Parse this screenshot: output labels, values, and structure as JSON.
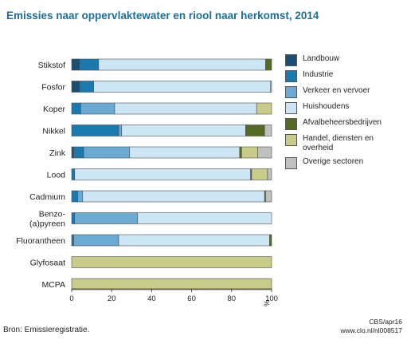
{
  "title": "Emissies naar oppervlaktewater en riool naar herkomst,  2014",
  "source": "Bron: Emissieregistratie.",
  "credit_line1": "CBS/apr16",
  "credit_line2": "www.clo.nl/nl008517",
  "chart_data": {
    "type": "bar",
    "orientation": "horizontal",
    "stacked": true,
    "title": "Emissies naar oppervlaktewater en riool naar herkomst,  2014",
    "xlabel": "",
    "unit": "%",
    "xlim": [
      0,
      100
    ],
    "ticks": [
      "0",
      "20",
      "40",
      "60",
      "80",
      "100"
    ],
    "grid": false,
    "legend_position": "right",
    "categories": [
      "Stikstof",
      "Fosfor",
      "Koper",
      "Nikkel",
      "Zink",
      "Lood",
      "Cadmium",
      "Benzo-\n(a)pyreen",
      "Fluorantheen",
      "Glyfosaat",
      "MCPA"
    ],
    "series": [
      {
        "name": "Landbouw",
        "color": "#1b4f72",
        "values": [
          4,
          4,
          0,
          0,
          1,
          0,
          0,
          0,
          0,
          0,
          0
        ]
      },
      {
        "name": "Industrie",
        "color": "#1a7ab0",
        "values": [
          9.5,
          7,
          4.5,
          23.5,
          5,
          1.5,
          3,
          1.5,
          1,
          0,
          0
        ]
      },
      {
        "name": "Verkeer en vervoer",
        "color": "#6aaad3",
        "values": [
          0,
          0,
          17,
          1.5,
          23,
          0,
          2.5,
          31.5,
          22.5,
          0,
          0
        ]
      },
      {
        "name": "Huishoudens",
        "color": "#cde6f5",
        "values": [
          83.5,
          88.5,
          71,
          62,
          55,
          88,
          91,
          67,
          75.5,
          0,
          0
        ]
      },
      {
        "name": "Afvalbeheersbedrijven",
        "color": "#556b24",
        "values": [
          3,
          0,
          0,
          9.5,
          1,
          0.5,
          0.5,
          0,
          1,
          0,
          0
        ]
      },
      {
        "name": "Handel, diensten en\noverheid",
        "color": "#c8cc88",
        "values": [
          0,
          0,
          7.5,
          0,
          8,
          8,
          0,
          0,
          0,
          100,
          100
        ]
      },
      {
        "name": "Overige sectoren",
        "color": "#c0c0c0",
        "values": [
          0,
          0.5,
          0,
          3.5,
          7,
          2,
          3,
          0,
          0,
          0,
          0
        ]
      }
    ]
  }
}
